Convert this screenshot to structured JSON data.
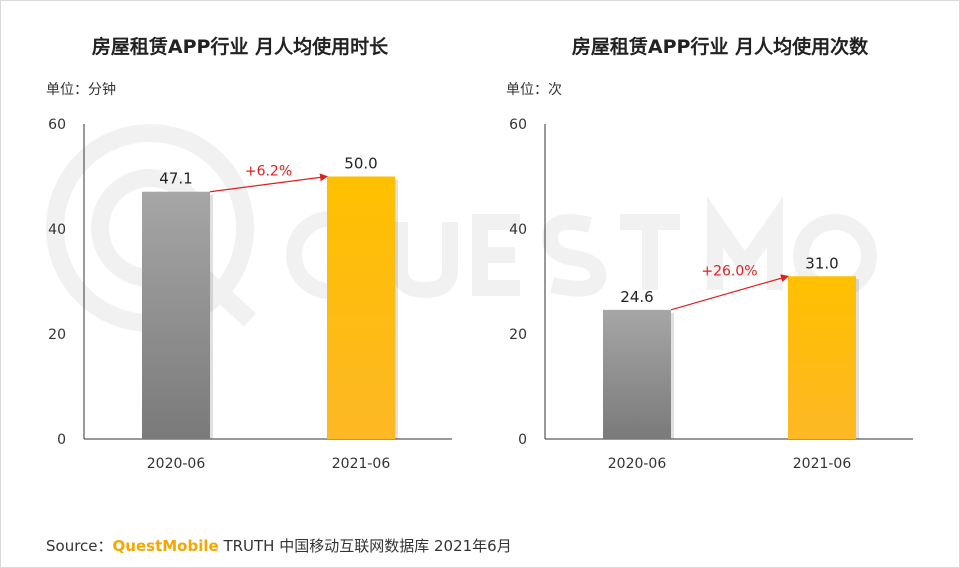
{
  "source": {
    "prefix": "Source：",
    "brand": "QuestMobile",
    "suffix": " TRUTH 中国移动互联网数据库 2021年6月"
  },
  "colors": {
    "bar_2020": "#7a7a7a",
    "bar_2021": "#ffc000",
    "growth_arrow": "#e02020"
  },
  "chart_data": [
    {
      "type": "bar",
      "title": "房屋租赁APP行业 月人均使用时长",
      "unit_label": "单位：分钟",
      "categories": [
        "2020-06",
        "2021-06"
      ],
      "values": [
        47.1,
        50.0
      ],
      "value_labels": [
        "47.1",
        "50.0"
      ],
      "growth_label": "+6.2%",
      "ylim": [
        0,
        60
      ],
      "yticks": [
        "0",
        "20",
        "40",
        "60"
      ],
      "grid": false
    },
    {
      "type": "bar",
      "title": "房屋租赁APP行业 月人均使用次数",
      "unit_label": "单位：次",
      "categories": [
        "2020-06",
        "2021-06"
      ],
      "values": [
        24.6,
        31.0
      ],
      "value_labels": [
        "24.6",
        "31.0"
      ],
      "growth_label": "+26.0%",
      "ylim": [
        0,
        60
      ],
      "yticks": [
        "0",
        "20",
        "40",
        "60"
      ],
      "grid": false
    }
  ]
}
